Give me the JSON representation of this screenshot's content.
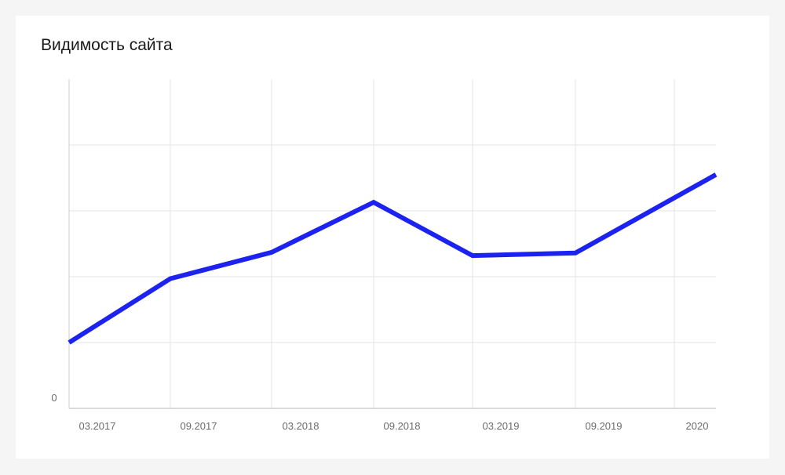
{
  "colors": {
    "line": "#1c22f0",
    "grid": "#e4e4e4",
    "axis": "#cfcfcf",
    "background": "#ffffff",
    "page": "#f5f5f5"
  },
  "chart_data": {
    "type": "line",
    "title": "Видимость сайта",
    "xlabel": "",
    "ylabel": "",
    "categories": [
      "03.2017",
      "09.2017",
      "03.2018",
      "09.2018",
      "03.2019",
      "09.2019",
      "2020"
    ],
    "y_tick_labels": [
      "0"
    ],
    "ylim": [
      0,
      5
    ],
    "grid": true,
    "legend": "none",
    "series": [
      {
        "values": [
          1.0,
          1.97,
          2.37,
          3.13,
          2.32,
          2.36,
          3.55
        ]
      }
    ]
  }
}
